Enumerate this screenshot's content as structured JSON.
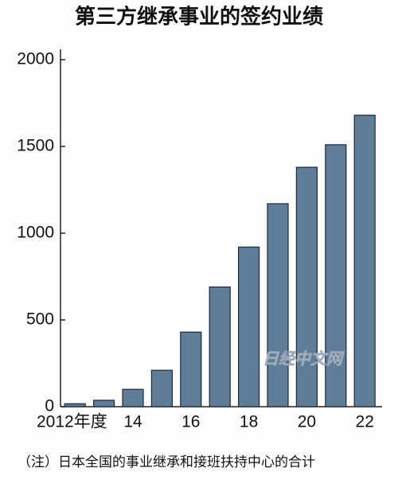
{
  "chart_data": {
    "type": "bar",
    "title": "第三方继承事业的签约业绩",
    "categories": [
      "2012年度",
      null,
      "14",
      null,
      "16",
      null,
      "18",
      null,
      "20",
      null,
      "22"
    ],
    "values": [
      17,
      37,
      100,
      210,
      430,
      690,
      920,
      1170,
      1380,
      1510,
      1680
    ],
    "color": "#5f7d98",
    "ylim": [
      0,
      2000
    ],
    "yticks": [
      0,
      500,
      1000,
      1500,
      2000
    ],
    "grid": false,
    "watermark": "日经中文网",
    "note": "（注）日本全国的事业继承和接班扶持中心的合计"
  }
}
